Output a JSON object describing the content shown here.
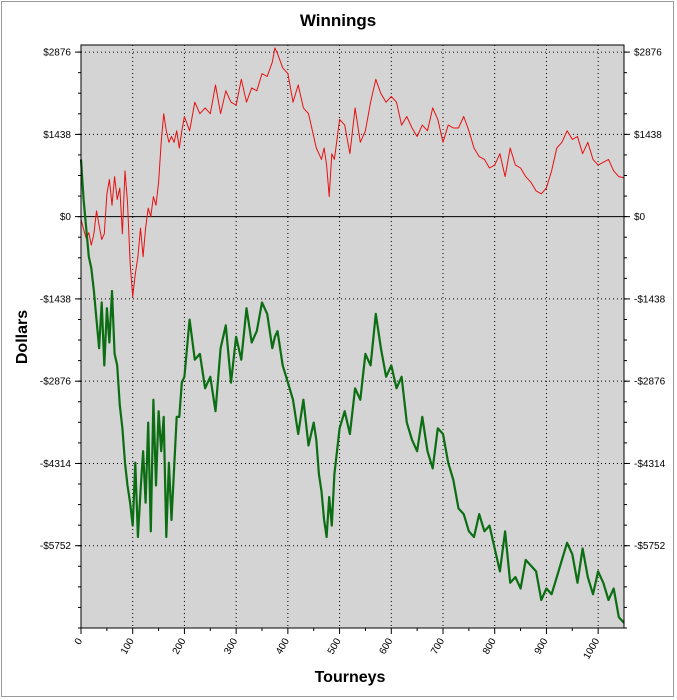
{
  "chart_data": {
    "type": "line",
    "title": "Winnings",
    "xlabel": "Tourneys",
    "ylabel": "Dollars",
    "xlim": [
      0,
      1050
    ],
    "ylim": [
      -7190,
      3000
    ],
    "x_ticks": [
      0,
      100,
      200,
      300,
      400,
      500,
      600,
      700,
      800,
      900,
      1000
    ],
    "x_tick_labels": [
      "0",
      "100",
      "200",
      "300",
      "400",
      "500",
      "600",
      "700",
      "800",
      "900",
      "1000"
    ],
    "y_ticks": [
      2876,
      1438,
      0,
      -1438,
      -2876,
      -4314,
      -5752
    ],
    "y_tick_labels": [
      "$2876",
      "$1438",
      "$0",
      "-$1438",
      "-$2876",
      "-$4314",
      "-$5752"
    ],
    "grid": true,
    "background": "#d4d4d4",
    "series": [
      {
        "color": "#e81010",
        "line_width": 1,
        "x": [
          0,
          5,
          10,
          15,
          20,
          25,
          30,
          35,
          40,
          45,
          50,
          55,
          60,
          65,
          70,
          75,
          80,
          85,
          90,
          95,
          100,
          105,
          110,
          115,
          120,
          125,
          130,
          135,
          140,
          145,
          150,
          155,
          160,
          165,
          170,
          175,
          180,
          185,
          190,
          195,
          200,
          210,
          220,
          230,
          240,
          250,
          260,
          270,
          280,
          290,
          300,
          310,
          320,
          330,
          340,
          350,
          360,
          370,
          375,
          380,
          390,
          400,
          410,
          420,
          430,
          440,
          450,
          455,
          460,
          465,
          470,
          475,
          480,
          485,
          490,
          500,
          510,
          520,
          530,
          540,
          550,
          560,
          570,
          580,
          590,
          600,
          610,
          620,
          630,
          640,
          650,
          660,
          670,
          680,
          690,
          700,
          710,
          720,
          730,
          740,
          750,
          760,
          770,
          780,
          790,
          800,
          810,
          820,
          830,
          840,
          850,
          860,
          870,
          880,
          890,
          900,
          910,
          920,
          930,
          940,
          950,
          960,
          970,
          980,
          990,
          1000,
          1010,
          1020,
          1030,
          1040,
          1050
        ],
        "y": [
          -50,
          -220,
          -380,
          -280,
          -500,
          -300,
          100,
          -150,
          -400,
          -300,
          400,
          650,
          200,
          700,
          300,
          500,
          -300,
          800,
          250,
          -800,
          -1400,
          -1000,
          -700,
          -200,
          -700,
          -200,
          150,
          0,
          350,
          200,
          600,
          1300,
          1800,
          1500,
          1300,
          1400,
          1300,
          1500,
          1200,
          1500,
          1750,
          1500,
          2000,
          1800,
          1900,
          1800,
          2300,
          1800,
          2200,
          2000,
          1950,
          2400,
          2000,
          2250,
          2200,
          2500,
          2450,
          2700,
          2950,
          2850,
          2600,
          2500,
          2000,
          2300,
          1900,
          1800,
          1400,
          1200,
          1100,
          1000,
          1200,
          900,
          350,
          1100,
          1000,
          1700,
          1600,
          1100,
          1900,
          1300,
          1500,
          2000,
          2400,
          2150,
          2000,
          2100,
          2000,
          1600,
          1750,
          1550,
          1400,
          1600,
          1500,
          1900,
          1700,
          1300,
          1600,
          1550,
          1550,
          1750,
          1500,
          1200,
          1050,
          1000,
          850,
          900,
          1100,
          700,
          1200,
          900,
          850,
          700,
          600,
          450,
          400,
          500,
          800,
          1200,
          1300,
          1500,
          1350,
          1400,
          1100,
          1300,
          1000,
          900,
          950,
          1000,
          800,
          700,
          680
        ]
      },
      {
        "color": "#0b6e12",
        "line_width": 2.2,
        "x": [
          0,
          5,
          10,
          15,
          20,
          25,
          30,
          35,
          40,
          45,
          50,
          55,
          60,
          65,
          70,
          75,
          80,
          85,
          90,
          95,
          100,
          105,
          110,
          115,
          120,
          125,
          130,
          135,
          140,
          145,
          150,
          155,
          160,
          165,
          170,
          175,
          180,
          185,
          190,
          195,
          200,
          210,
          220,
          230,
          240,
          250,
          260,
          270,
          280,
          290,
          300,
          310,
          320,
          330,
          340,
          350,
          360,
          370,
          375,
          380,
          390,
          400,
          410,
          420,
          430,
          440,
          450,
          455,
          460,
          465,
          470,
          475,
          480,
          485,
          490,
          500,
          510,
          520,
          530,
          540,
          550,
          560,
          570,
          580,
          590,
          600,
          610,
          620,
          630,
          640,
          650,
          660,
          670,
          680,
          690,
          700,
          710,
          720,
          730,
          740,
          750,
          760,
          770,
          780,
          790,
          800,
          810,
          820,
          830,
          840,
          850,
          860,
          870,
          880,
          890,
          900,
          910,
          920,
          930,
          940,
          950,
          960,
          970,
          980,
          990,
          1000,
          1010,
          1020,
          1030,
          1040,
          1050
        ],
        "y": [
          1000,
          300,
          -200,
          -700,
          -900,
          -1300,
          -1800,
          -2300,
          -1500,
          -2600,
          -1600,
          -2200,
          -1300,
          -2400,
          -2600,
          -3300,
          -3700,
          -4300,
          -4700,
          -5000,
          -5400,
          -4300,
          -5600,
          -4800,
          -4100,
          -5000,
          -3600,
          -5500,
          -3200,
          -4700,
          -3400,
          -4100,
          -3500,
          -5600,
          -4300,
          -5300,
          -4400,
          -3500,
          -3500,
          -2900,
          -2800,
          -1800,
          -2500,
          -2400,
          -3000,
          -2800,
          -3400,
          -2300,
          -1900,
          -2900,
          -2100,
          -2500,
          -1600,
          -2200,
          -2000,
          -1500,
          -1700,
          -2300,
          -2100,
          -2000,
          -2600,
          -2900,
          -3200,
          -3800,
          -3200,
          -4000,
          -3600,
          -3900,
          -4500,
          -4800,
          -5300,
          -5600,
          -4900,
          -5400,
          -4500,
          -3700,
          -3400,
          -3800,
          -3000,
          -3200,
          -2400,
          -2600,
          -1700,
          -2300,
          -2800,
          -2600,
          -3000,
          -2800,
          -3600,
          -3900,
          -4100,
          -3500,
          -4100,
          -4400,
          -3700,
          -3800,
          -4300,
          -4600,
          -5100,
          -5200,
          -5500,
          -5600,
          -5200,
          -5500,
          -5400,
          -5800,
          -6200,
          -5500,
          -6400,
          -6300,
          -6500,
          -6000,
          -6100,
          -6200,
          -6700,
          -6500,
          -6600,
          -6300,
          -6000,
          -5700,
          -5900,
          -6400,
          -5800,
          -6300,
          -6600,
          -6200,
          -6400,
          -6700,
          -6500,
          -7000,
          -7100
        ]
      }
    ]
  }
}
